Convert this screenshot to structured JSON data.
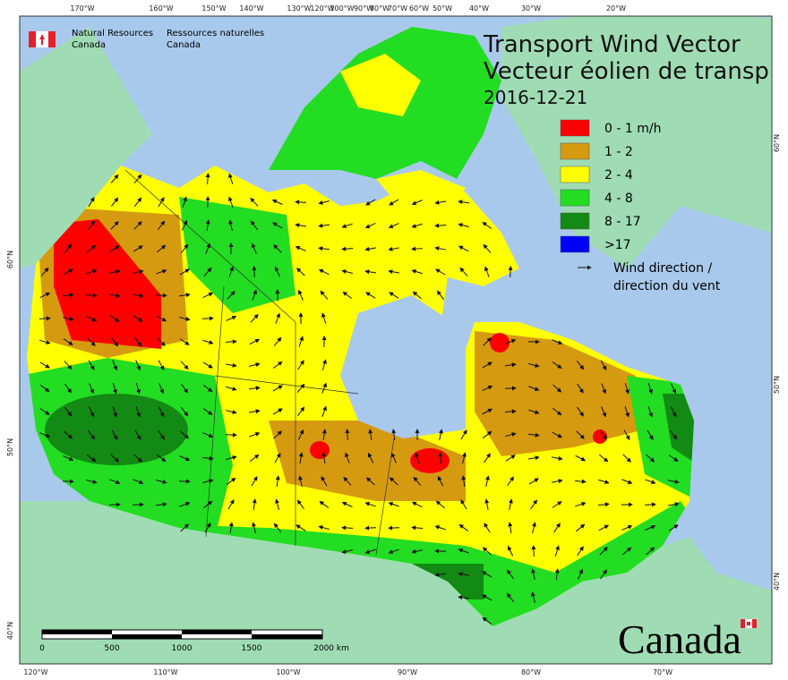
{
  "header": {
    "agency_en": [
      "Natural Resources",
      "Canada"
    ],
    "agency_fr": [
      "Ressources naturelles",
      "Canada"
    ]
  },
  "title": {
    "line1": "Transport Wind Vector",
    "line2": "Vecteur éolien de transp",
    "date": "2016-12-21"
  },
  "legend": {
    "items": [
      {
        "label": "0 - 1 m/h",
        "color": "#ff0000"
      },
      {
        "label": "1 - 2",
        "color": "#d69a10"
      },
      {
        "label": "2 - 4",
        "color": "#ffff00"
      },
      {
        "label": "4 - 8",
        "color": "#22dd22"
      },
      {
        "label": "8 - 17",
        "color": "#138a13"
      },
      {
        "label": ">17",
        "color": "#0000ff"
      }
    ],
    "arrow_label": [
      "Wind direction /",
      "direction du vent"
    ]
  },
  "graticule": {
    "top": [
      "170°W",
      "160°W",
      "150°W",
      "140°W",
      "130°W",
      "120°W",
      "100°W",
      "90°W",
      "80°W",
      "70°W",
      "60°W",
      "50°W",
      "40°W",
      "30°W",
      "20°W"
    ],
    "left": [
      "60°N",
      "50°N",
      "40°N"
    ],
    "right": [
      "60°N",
      "50°N",
      "40°N"
    ],
    "bottom": [
      "120°W",
      "110°W",
      "100°W",
      "90°W",
      "80°W",
      "70°W"
    ]
  },
  "scale_bar": {
    "labels": [
      "0",
      "500",
      "1000",
      "1500",
      "2000 km"
    ]
  },
  "wordmark": "Canada"
}
